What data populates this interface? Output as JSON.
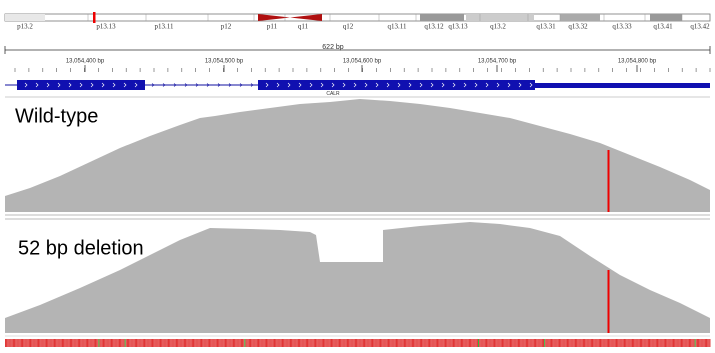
{
  "ideogram": {
    "bands": [
      "p13.2",
      "p13.13",
      "p13.11",
      "p12",
      "p11",
      "q11",
      "q12",
      "q13.11",
      "q13.12",
      "q13.13",
      "q13.2",
      "q13.31",
      "q13.32",
      "q13.33",
      "q13.41",
      "q13.42"
    ]
  },
  "scale": {
    "span": "622 bp"
  },
  "ruler": {
    "labels": [
      "13,054,400 bp",
      "13,054,500 bp",
      "13,054,600 bp",
      "13,054,700 bp",
      "13,054,800 bp"
    ]
  },
  "gene": {
    "name": "CALR"
  },
  "tracks": [
    {
      "label": "Wild-type"
    },
    {
      "label": "52 bp deletion"
    }
  ]
}
